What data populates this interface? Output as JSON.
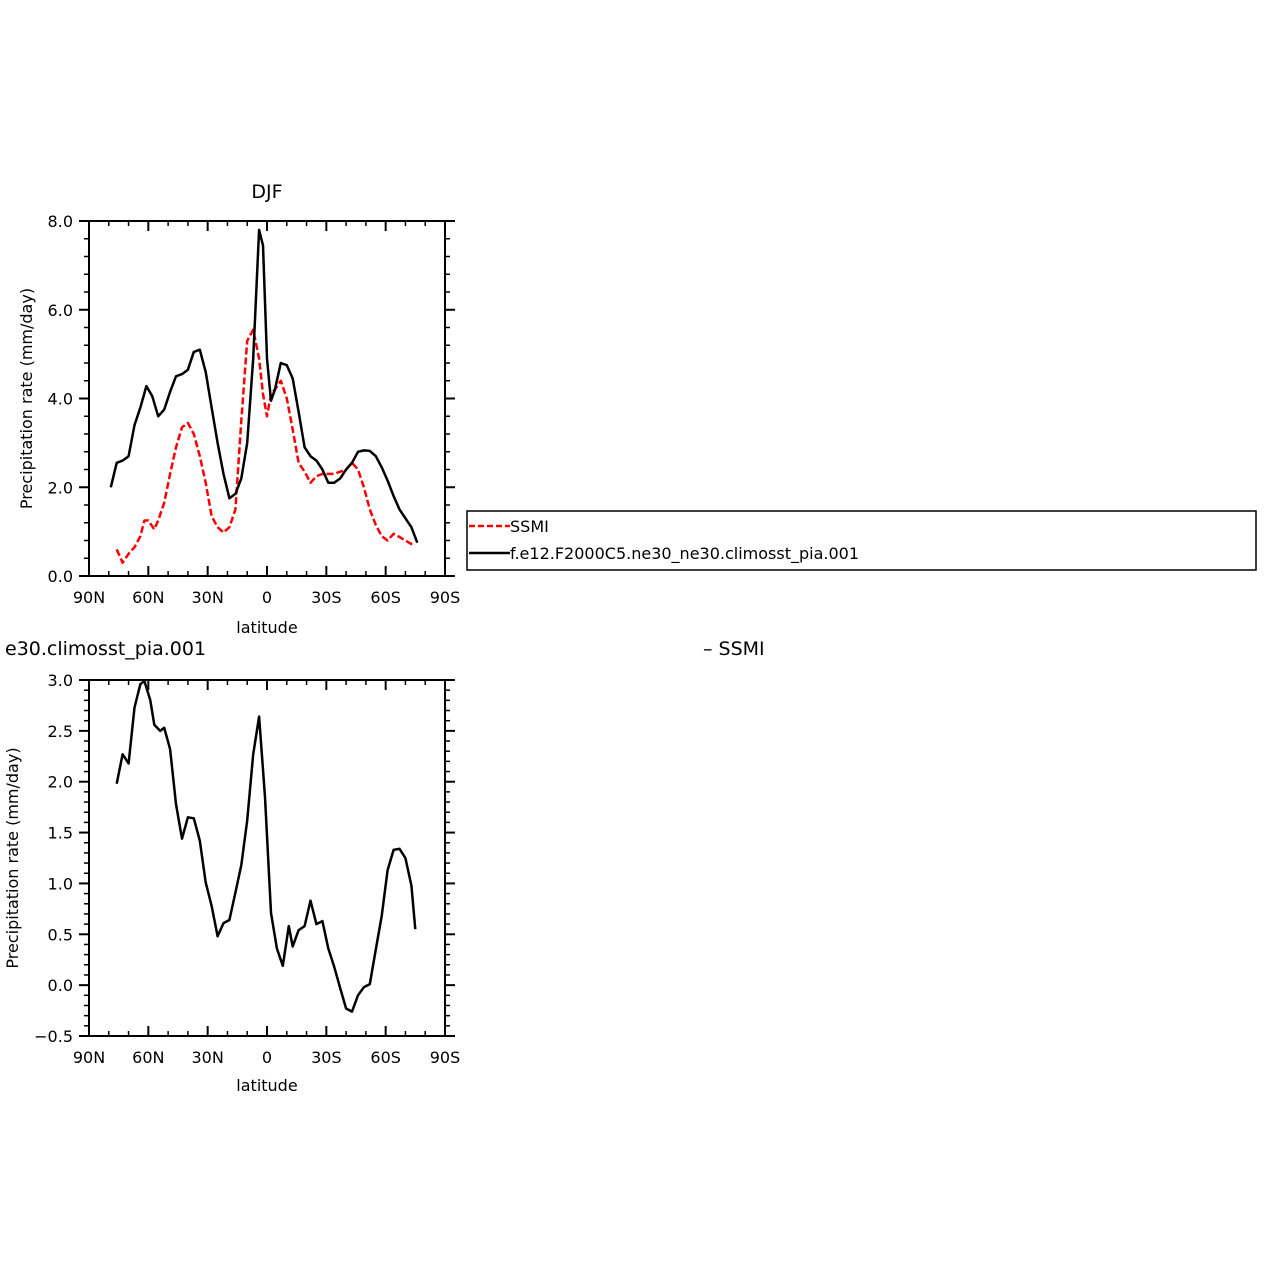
{
  "chart_data": [
    {
      "type": "line",
      "title": "DJF",
      "xlabel": "latitude",
      "ylabel": "Precipitation rate (mm/day)",
      "xlim": [
        -90,
        90
      ],
      "ylim": [
        0,
        8
      ],
      "xticks": [
        -90,
        -60,
        -30,
        0,
        30,
        60,
        90
      ],
      "xtick_labels": [
        "90N",
        "60N",
        "30N",
        "0",
        "30S",
        "60S",
        "90S"
      ],
      "yticks": [
        0,
        2,
        4,
        6,
        8
      ],
      "ytick_labels": [
        "0.0",
        "2.0",
        "4.0",
        "6.0",
        "8.0"
      ],
      "series": [
        {
          "name": "SSMI",
          "color": "#ff0000",
          "dash": "dashed",
          "x": [
            -76,
            -73,
            -70,
            -67,
            -64,
            -62,
            -60,
            -57,
            -55,
            -52,
            -49,
            -46,
            -43,
            -40,
            -37,
            -34,
            -31,
            -28,
            -25,
            -22,
            -19,
            -16,
            -13,
            -10,
            -7,
            -4,
            -2,
            0,
            2,
            4,
            7,
            10,
            13,
            16,
            19,
            22,
            25,
            28,
            31,
            34,
            37,
            40,
            43,
            46,
            49,
            52,
            55,
            58,
            61,
            64,
            67,
            70,
            73,
            75
          ],
          "y": [
            0.6,
            0.3,
            0.5,
            0.65,
            0.9,
            1.25,
            1.25,
            1.05,
            1.25,
            1.65,
            2.3,
            2.9,
            3.35,
            3.45,
            3.2,
            2.7,
            2.1,
            1.35,
            1.1,
            0.98,
            1.1,
            1.5,
            3.5,
            5.3,
            5.55,
            4.9,
            4.1,
            3.6,
            4.1,
            4.2,
            4.4,
            4.0,
            3.3,
            2.55,
            2.35,
            2.1,
            2.25,
            2.3,
            2.3,
            2.3,
            2.35,
            2.4,
            2.55,
            2.4,
            2.0,
            1.5,
            1.15,
            0.9,
            0.8,
            0.95,
            0.88,
            0.8,
            0.72,
            0.7
          ]
        },
        {
          "name": "f.e12.F2000C5.ne30_ne30.climosst_pia.001",
          "color": "#000000",
          "dash": "solid",
          "x": [
            -79,
            -76,
            -73,
            -70,
            -67,
            -64,
            -61,
            -58,
            -55,
            -52,
            -49,
            -46,
            -43,
            -40,
            -37,
            -34,
            -31,
            -28,
            -25,
            -22,
            -19,
            -16,
            -13,
            -10,
            -7,
            -4,
            -2,
            0,
            2,
            4,
            7,
            10,
            13,
            16,
            19,
            22,
            25,
            28,
            31,
            34,
            37,
            40,
            43,
            46,
            49,
            52,
            55,
            58,
            61,
            64,
            67,
            70,
            73,
            76
          ],
          "y": [
            2.0,
            2.55,
            2.6,
            2.7,
            3.4,
            3.8,
            4.28,
            4.05,
            3.6,
            3.75,
            4.15,
            4.5,
            4.55,
            4.65,
            5.05,
            5.1,
            4.6,
            3.8,
            3.0,
            2.3,
            1.75,
            1.85,
            2.2,
            3.0,
            4.9,
            7.8,
            7.45,
            4.9,
            3.95,
            4.2,
            4.8,
            4.75,
            4.45,
            3.7,
            2.9,
            2.7,
            2.6,
            2.4,
            2.1,
            2.1,
            2.2,
            2.4,
            2.55,
            2.8,
            2.83,
            2.82,
            2.7,
            2.45,
            2.15,
            1.8,
            1.5,
            1.3,
            1.1,
            0.75
          ]
        }
      ],
      "legend": {
        "placement": "right",
        "entries": [
          "SSMI",
          "f.e12.F2000C5.ne30_ne30.climosst_pia.001"
        ]
      }
    },
    {
      "type": "line",
      "title": "e30.climosst_pia.001",
      "title_right": "– SSMI",
      "xlabel": "latitude",
      "ylabel": "Precipitation rate (mm/day)",
      "xlim": [
        -90,
        90
      ],
      "ylim": [
        -0.5,
        3.0
      ],
      "xticks": [
        -90,
        -60,
        -30,
        0,
        30,
        60,
        90
      ],
      "xtick_labels": [
        "90N",
        "60N",
        "30N",
        "0",
        "30S",
        "60S",
        "90S"
      ],
      "yticks": [
        -0.5,
        0,
        0.5,
        1.0,
        1.5,
        2.0,
        2.5,
        3.0
      ],
      "ytick_labels": [
        "−0.5",
        "0.0",
        "0.5",
        "1.0",
        "1.5",
        "2.0",
        "2.5",
        "3.0"
      ],
      "series": [
        {
          "color": "#000000",
          "dash": "solid",
          "x": [
            -76,
            -73,
            -70,
            -67,
            -64,
            -62,
            -59,
            -57,
            -54,
            -52,
            -49,
            -46,
            -43,
            -40,
            -37,
            -34,
            -31,
            -28,
            -25,
            -22,
            -19,
            -16,
            -13,
            -10,
            -7,
            -4,
            -1,
            2,
            5,
            8,
            11,
            13,
            16,
            19,
            22,
            25,
            28,
            31,
            34,
            37,
            40,
            43,
            46,
            49,
            52,
            55,
            58,
            61,
            64,
            67,
            70,
            73,
            75
          ],
          "y": [
            1.98,
            2.27,
            2.18,
            2.73,
            2.96,
            2.99,
            2.8,
            2.56,
            2.5,
            2.53,
            2.32,
            1.78,
            1.44,
            1.65,
            1.64,
            1.42,
            1.01,
            0.78,
            0.48,
            0.61,
            0.64,
            0.91,
            1.18,
            1.62,
            2.27,
            2.64,
            1.85,
            0.71,
            0.36,
            0.19,
            0.58,
            0.38,
            0.54,
            0.58,
            0.83,
            0.6,
            0.63,
            0.36,
            0.18,
            -0.03,
            -0.23,
            -0.26,
            -0.1,
            -0.02,
            0.01,
            0.35,
            0.68,
            1.13,
            1.33,
            1.34,
            1.25,
            0.98,
            0.55
          ]
        }
      ]
    }
  ]
}
